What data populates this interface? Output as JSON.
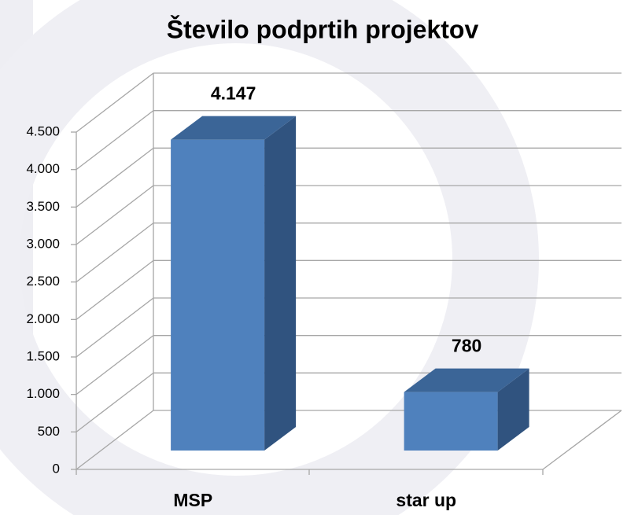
{
  "chart_data": {
    "type": "bar3d",
    "title": "Število podprtih projektov",
    "categories": [
      "MSP",
      "star up"
    ],
    "values": [
      4147,
      780
    ],
    "value_labels": [
      "4.147",
      "780"
    ],
    "color": "#4f81bd",
    "ylim": [
      0,
      4500
    ],
    "yticks": [
      0,
      500,
      {
        "value": 1000,
        "label": "1.000"
      },
      {
        "value": 1500,
        "label": "1.500"
      },
      {
        "value": 2000,
        "label": "2.000"
      },
      {
        "value": 2500,
        "label": "2.500"
      },
      {
        "value": 3000,
        "label": "3.000"
      },
      {
        "value": 3500,
        "label": "3.500"
      },
      {
        "value": 4000,
        "label": "4.000"
      },
      {
        "value": 4500,
        "label": "4.500"
      }
    ],
    "grid": true
  }
}
